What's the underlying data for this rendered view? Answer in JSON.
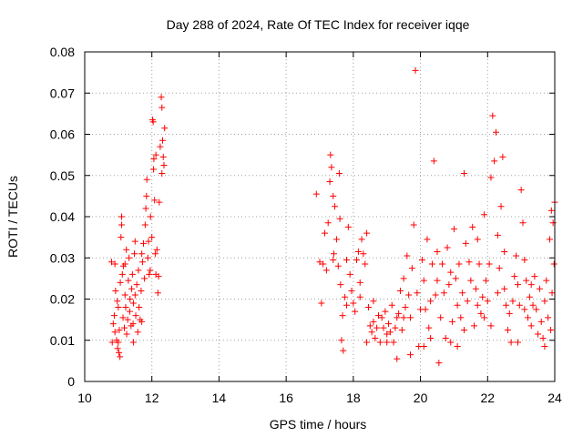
{
  "chart_data": {
    "type": "scatter",
    "title": "Day 288 of 2024, Rate Of TEC Index for receiver iqqe",
    "xlabel": "GPS time / hours",
    "ylabel": "ROTI / TECUs",
    "xlim": [
      10,
      24
    ],
    "ylim": [
      0,
      0.08
    ],
    "grid": true,
    "marker": "+",
    "color": "#ff0000",
    "xticks": [
      10,
      12,
      14,
      16,
      18,
      20,
      22,
      24
    ],
    "xtick_labels": [
      "10",
      "12",
      "14",
      "16",
      "18",
      "20",
      "22",
      "24"
    ],
    "yticks": [
      0,
      0.01,
      0.02,
      0.03,
      0.04,
      0.05,
      0.06,
      0.07,
      0.08
    ],
    "ytick_labels": [
      "0",
      "0.01",
      "0.02",
      "0.03",
      "0.04",
      "0.05",
      "0.06",
      "0.07",
      "0.08"
    ],
    "series": [
      {
        "name": "ROTI",
        "points": [
          [
            10.8,
            0.029
          ],
          [
            10.82,
            0.0095
          ],
          [
            10.85,
            0.014
          ],
          [
            10.88,
            0.016
          ],
          [
            10.9,
            0.012
          ],
          [
            10.92,
            0.022
          ],
          [
            10.95,
            0.01
          ],
          [
            10.97,
            0.0195
          ],
          [
            10.98,
            0.008
          ],
          [
            11.0,
            0.018
          ],
          [
            11.02,
            0.007
          ],
          [
            11.03,
            0.0125
          ],
          [
            11.05,
            0.006
          ],
          [
            11.06,
            0.024
          ],
          [
            11.08,
            0.035
          ],
          [
            11.1,
            0.04
          ],
          [
            11.1,
            0.038
          ],
          [
            11.12,
            0.026
          ],
          [
            11.14,
            0.0155
          ],
          [
            11.15,
            0.028
          ],
          [
            11.18,
            0.013
          ],
          [
            11.2,
            0.021
          ],
          [
            11.22,
            0.018
          ],
          [
            11.24,
            0.032
          ],
          [
            11.25,
            0.0115
          ],
          [
            11.28,
            0.015
          ],
          [
            11.3,
            0.0245
          ],
          [
            11.32,
            0.03
          ],
          [
            11.34,
            0.017
          ],
          [
            11.35,
            0.02
          ],
          [
            11.38,
            0.0135
          ],
          [
            11.4,
            0.0225
          ],
          [
            11.42,
            0.026
          ],
          [
            11.44,
            0.014
          ],
          [
            11.45,
            0.019
          ],
          [
            11.48,
            0.031
          ],
          [
            11.5,
            0.021
          ],
          [
            11.52,
            0.016
          ],
          [
            11.55,
            0.0235
          ],
          [
            11.58,
            0.012
          ],
          [
            11.6,
            0.027
          ],
          [
            11.62,
            0.018
          ],
          [
            11.65,
            0.015
          ],
          [
            11.68,
            0.022
          ],
          [
            11.7,
            0.031
          ],
          [
            11.72,
            0.029
          ],
          [
            11.75,
            0.0335
          ],
          [
            11.78,
            0.025
          ],
          [
            11.8,
            0.038
          ],
          [
            11.82,
            0.042
          ],
          [
            11.84,
            0.045
          ],
          [
            11.85,
            0.049
          ],
          [
            11.88,
            0.03
          ],
          [
            11.9,
            0.034
          ],
          [
            11.92,
            0.026
          ],
          [
            11.95,
            0.027
          ],
          [
            12.0,
            0.035
          ],
          [
            12.02,
            0.0635
          ],
          [
            12.04,
            0.063
          ],
          [
            12.06,
            0.054
          ],
          [
            12.08,
            0.044
          ],
          [
            12.1,
            0.031
          ],
          [
            12.12,
            0.026
          ],
          [
            12.15,
            0.032
          ],
          [
            12.18,
            0.0215
          ],
          [
            12.2,
            0.0255
          ],
          [
            12.22,
            0.0435
          ],
          [
            12.25,
            0.057
          ],
          [
            12.28,
            0.069
          ],
          [
            12.3,
            0.0665
          ],
          [
            12.32,
            0.0585
          ],
          [
            12.34,
            0.0545
          ],
          [
            12.36,
            0.0525
          ],
          [
            12.38,
            0.0615
          ],
          [
            12.3,
            0.0505
          ],
          [
            12.12,
            0.055
          ],
          [
            11.96,
            0.04
          ],
          [
            11.7,
            0.0145
          ],
          [
            11.45,
            0.0095
          ],
          [
            11.2,
            0.0285
          ],
          [
            11.0,
            0.0095
          ],
          [
            10.9,
            0.0285
          ],
          [
            11.5,
            0.034
          ],
          [
            12.05,
            0.0515
          ],
          [
            16.9,
            0.0455
          ],
          [
            17.0,
            0.029
          ],
          [
            17.05,
            0.019
          ],
          [
            17.1,
            0.0285
          ],
          [
            17.15,
            0.036
          ],
          [
            17.2,
            0.027
          ],
          [
            17.25,
            0.0385
          ],
          [
            17.3,
            0.0485
          ],
          [
            17.32,
            0.055
          ],
          [
            17.35,
            0.052
          ],
          [
            17.4,
            0.045
          ],
          [
            17.42,
            0.031
          ],
          [
            17.45,
            0.0425
          ],
          [
            17.5,
            0.0345
          ],
          [
            17.55,
            0.028
          ],
          [
            17.58,
            0.0505
          ],
          [
            17.6,
            0.0395
          ],
          [
            17.62,
            0.0235
          ],
          [
            17.65,
            0.01
          ],
          [
            17.68,
            0.016
          ],
          [
            17.7,
            0.0075
          ],
          [
            17.75,
            0.0205
          ],
          [
            17.8,
            0.0295
          ],
          [
            17.85,
            0.0375
          ],
          [
            17.9,
            0.026
          ],
          [
            17.95,
            0.022
          ],
          [
            18.0,
            0.019
          ],
          [
            18.05,
            0.017
          ],
          [
            18.1,
            0.0295
          ],
          [
            18.15,
            0.0315
          ],
          [
            18.2,
            0.024
          ],
          [
            18.25,
            0.0345
          ],
          [
            18.3,
            0.031
          ],
          [
            18.35,
            0.0285
          ],
          [
            18.4,
            0.036
          ],
          [
            18.45,
            0.018
          ],
          [
            18.5,
            0.0135
          ],
          [
            18.55,
            0.012
          ],
          [
            18.6,
            0.0145
          ],
          [
            18.65,
            0.0105
          ],
          [
            18.7,
            0.013
          ],
          [
            18.75,
            0.016
          ],
          [
            18.8,
            0.0095
          ],
          [
            18.85,
            0.0155
          ],
          [
            18.9,
            0.013
          ],
          [
            18.95,
            0.017
          ],
          [
            19.0,
            0.0115
          ],
          [
            19.05,
            0.014
          ],
          [
            19.1,
            0.012
          ],
          [
            19.15,
            0.0185
          ],
          [
            19.2,
            0.0095
          ],
          [
            19.25,
            0.013
          ],
          [
            19.3,
            0.0055
          ],
          [
            19.35,
            0.0165
          ],
          [
            19.4,
            0.022
          ],
          [
            19.45,
            0.0125
          ],
          [
            19.5,
            0.025
          ],
          [
            19.55,
            0.018
          ],
          [
            19.6,
            0.0305
          ],
          [
            19.65,
            0.021
          ],
          [
            19.7,
            0.0155
          ],
          [
            19.75,
            0.0275
          ],
          [
            19.8,
            0.038
          ],
          [
            19.85,
            0.0755
          ],
          [
            19.9,
            0.0215
          ],
          [
            19.95,
            0.0085
          ],
          [
            20.0,
            0.0175
          ],
          [
            20.05,
            0.0295
          ],
          [
            20.1,
            0.0245
          ],
          [
            20.15,
            0.0175
          ],
          [
            20.2,
            0.0345
          ],
          [
            20.25,
            0.013
          ],
          [
            20.3,
            0.0105
          ],
          [
            20.35,
            0.0285
          ],
          [
            20.4,
            0.0535
          ],
          [
            20.45,
            0.021
          ],
          [
            20.5,
            0.0315
          ],
          [
            20.55,
            0.0045
          ],
          [
            20.6,
            0.0155
          ],
          [
            20.65,
            0.0285
          ],
          [
            20.7,
            0.0215
          ],
          [
            20.75,
            0.0105
          ],
          [
            20.8,
            0.0325
          ],
          [
            20.85,
            0.0235
          ],
          [
            20.9,
            0.0265
          ],
          [
            20.95,
            0.0145
          ],
          [
            21.0,
            0.037
          ],
          [
            21.05,
            0.025
          ],
          [
            21.1,
            0.0185
          ],
          [
            21.15,
            0.0285
          ],
          [
            21.2,
            0.0155
          ],
          [
            21.25,
            0.0215
          ],
          [
            21.3,
            0.0505
          ],
          [
            21.35,
            0.0335
          ],
          [
            21.4,
            0.0195
          ],
          [
            21.45,
            0.029
          ],
          [
            21.5,
            0.0245
          ],
          [
            21.55,
            0.0375
          ],
          [
            21.6,
            0.0135
          ],
          [
            21.65,
            0.0225
          ],
          [
            21.7,
            0.0185
          ],
          [
            21.75,
            0.0285
          ],
          [
            21.8,
            0.0165
          ],
          [
            21.85,
            0.0205
          ],
          [
            21.9,
            0.0155
          ],
          [
            21.95,
            0.0245
          ],
          [
            22.0,
            0.0195
          ],
          [
            22.05,
            0.0285
          ],
          [
            22.1,
            0.0495
          ],
          [
            22.15,
            0.0645
          ],
          [
            22.2,
            0.0535
          ],
          [
            22.25,
            0.0605
          ],
          [
            22.3,
            0.0355
          ],
          [
            22.35,
            0.0275
          ],
          [
            22.4,
            0.0425
          ],
          [
            22.45,
            0.0545
          ],
          [
            22.5,
            0.0225
          ],
          [
            22.55,
            0.0185
          ],
          [
            22.6,
            0.0125
          ],
          [
            22.65,
            0.0165
          ],
          [
            22.7,
            0.0095
          ],
          [
            22.75,
            0.0195
          ],
          [
            22.8,
            0.0255
          ],
          [
            22.85,
            0.0305
          ],
          [
            22.9,
            0.0235
          ],
          [
            22.95,
            0.0185
          ],
          [
            23.0,
            0.0465
          ],
          [
            23.05,
            0.0385
          ],
          [
            23.1,
            0.0175
          ],
          [
            23.15,
            0.0245
          ],
          [
            23.2,
            0.0155
          ],
          [
            23.25,
            0.0205
          ],
          [
            23.3,
            0.0135
          ],
          [
            23.35,
            0.0185
          ],
          [
            23.4,
            0.0255
          ],
          [
            23.45,
            0.0175
          ],
          [
            23.5,
            0.0115
          ],
          [
            23.55,
            0.0225
          ],
          [
            23.6,
            0.0145
          ],
          [
            23.65,
            0.0105
          ],
          [
            23.7,
            0.0195
          ],
          [
            23.75,
            0.0245
          ],
          [
            23.8,
            0.0155
          ],
          [
            23.85,
            0.0345
          ],
          [
            23.9,
            0.0415
          ],
          [
            23.95,
            0.0385
          ],
          [
            24.0,
            0.0435
          ],
          [
            23.98,
            0.0285
          ],
          [
            23.92,
            0.0215
          ],
          [
            23.88,
            0.0125
          ],
          [
            18.2,
            0.0205
          ],
          [
            18.6,
            0.0195
          ],
          [
            19.0,
            0.0095
          ],
          [
            19.3,
            0.0155
          ],
          [
            19.7,
            0.0065
          ],
          [
            20.1,
            0.0085
          ],
          [
            20.5,
            0.0245
          ],
          [
            20.9,
            0.0095
          ],
          [
            21.3,
            0.0125
          ],
          [
            21.7,
            0.0345
          ],
          [
            22.1,
            0.0135
          ],
          [
            22.5,
            0.0315
          ],
          [
            22.9,
            0.0095
          ],
          [
            23.3,
            0.0235
          ],
          [
            23.7,
            0.0085
          ],
          [
            17.4,
            0.0295
          ],
          [
            17.8,
            0.0185
          ],
          [
            18.4,
            0.0095
          ],
          [
            19.5,
            0.0155
          ],
          [
            20.3,
            0.0195
          ],
          [
            21.1,
            0.0085
          ],
          [
            21.9,
            0.0405
          ],
          [
            22.3,
            0.0215
          ],
          [
            23.1,
            0.0295
          ]
        ]
      }
    ]
  }
}
